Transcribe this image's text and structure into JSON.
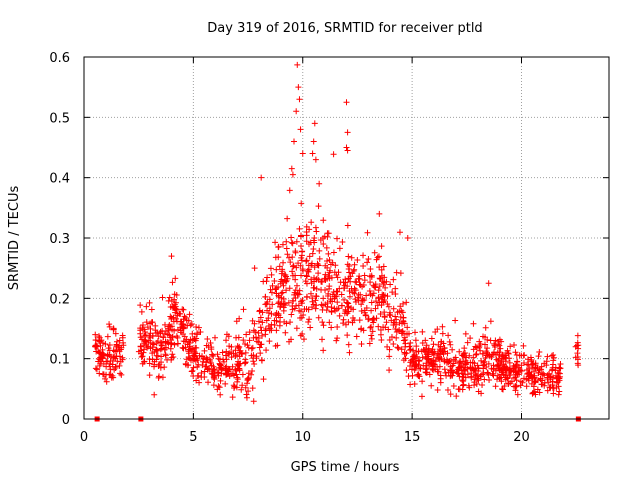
{
  "chart_data": {
    "type": "scatter",
    "title": "Day 319 of 2016, SRMTID for receiver ptld",
    "xlabel": "GPS time / hours",
    "ylabel": "SRMTID / TECUs",
    "xlim": [
      0,
      24
    ],
    "ylim": [
      0,
      0.6
    ],
    "xticks": [
      0,
      5,
      10,
      15,
      20
    ],
    "yticks": [
      0,
      0.1,
      0.2,
      0.3,
      0.4,
      0.5,
      0.6
    ],
    "xtick_labels": [
      "0",
      "5",
      "10",
      "15",
      "20"
    ],
    "ytick_labels": [
      "0",
      "0.1",
      "0.2",
      "0.3",
      "0.4",
      "0.5",
      "0.6"
    ],
    "grid": true,
    "marker": "+",
    "color": "#ff0000",
    "zero_markers_x": [
      0.6,
      2.6,
      22.6
    ],
    "trend": [
      {
        "x": 0.5,
        "y": 0.11
      },
      {
        "x": 1.0,
        "y": 0.1
      },
      {
        "x": 1.5,
        "y": 0.11
      },
      {
        "x": 2.6,
        "y": 0.13
      },
      {
        "x": 3.0,
        "y": 0.12
      },
      {
        "x": 3.5,
        "y": 0.11
      },
      {
        "x": 4.0,
        "y": 0.16
      },
      {
        "x": 4.5,
        "y": 0.14
      },
      {
        "x": 5.0,
        "y": 0.11
      },
      {
        "x": 5.5,
        "y": 0.1
      },
      {
        "x": 6.0,
        "y": 0.08
      },
      {
        "x": 6.5,
        "y": 0.09
      },
      {
        "x": 7.0,
        "y": 0.1
      },
      {
        "x": 7.5,
        "y": 0.09
      },
      {
        "x": 8.0,
        "y": 0.14
      },
      {
        "x": 8.5,
        "y": 0.18
      },
      {
        "x": 9.0,
        "y": 0.21
      },
      {
        "x": 9.5,
        "y": 0.24
      },
      {
        "x": 10.0,
        "y": 0.23
      },
      {
        "x": 10.5,
        "y": 0.24
      },
      {
        "x": 11.0,
        "y": 0.23
      },
      {
        "x": 11.5,
        "y": 0.22
      },
      {
        "x": 12.0,
        "y": 0.21
      },
      {
        "x": 12.5,
        "y": 0.2
      },
      {
        "x": 13.0,
        "y": 0.2
      },
      {
        "x": 13.5,
        "y": 0.2
      },
      {
        "x": 14.0,
        "y": 0.17
      },
      {
        "x": 14.5,
        "y": 0.16
      },
      {
        "x": 15.0,
        "y": 0.1
      },
      {
        "x": 15.5,
        "y": 0.09
      },
      {
        "x": 16.0,
        "y": 0.1
      },
      {
        "x": 16.5,
        "y": 0.1
      },
      {
        "x": 17.0,
        "y": 0.08
      },
      {
        "x": 17.5,
        "y": 0.09
      },
      {
        "x": 18.0,
        "y": 0.09
      },
      {
        "x": 18.5,
        "y": 0.1
      },
      {
        "x": 19.0,
        "y": 0.09
      },
      {
        "x": 19.5,
        "y": 0.08
      },
      {
        "x": 20.0,
        "y": 0.08
      },
      {
        "x": 20.5,
        "y": 0.07
      },
      {
        "x": 21.0,
        "y": 0.08
      },
      {
        "x": 21.5,
        "y": 0.07
      },
      {
        "x": 22.6,
        "y": 0.1
      }
    ],
    "spread": [
      {
        "x": 0.5,
        "y": 0.025
      },
      {
        "x": 4.0,
        "y": 0.04
      },
      {
        "x": 6.0,
        "y": 0.025
      },
      {
        "x": 8.5,
        "y": 0.055
      },
      {
        "x": 10.0,
        "y": 0.065
      },
      {
        "x": 12.0,
        "y": 0.06
      },
      {
        "x": 14.0,
        "y": 0.05
      },
      {
        "x": 15.5,
        "y": 0.025
      },
      {
        "x": 18.0,
        "y": 0.03
      },
      {
        "x": 22.6,
        "y": 0.02
      }
    ],
    "gaps": [
      [
        1.8,
        2.5
      ],
      [
        21.8,
        22.45
      ],
      [
        22.75,
        24
      ]
    ],
    "highlights": [
      {
        "x": 9.75,
        "y": 0.587
      },
      {
        "x": 9.8,
        "y": 0.55
      },
      {
        "x": 9.85,
        "y": 0.53
      },
      {
        "x": 9.7,
        "y": 0.51
      },
      {
        "x": 9.9,
        "y": 0.48
      },
      {
        "x": 9.6,
        "y": 0.46
      },
      {
        "x": 10.0,
        "y": 0.44
      },
      {
        "x": 10.55,
        "y": 0.49
      },
      {
        "x": 10.5,
        "y": 0.46
      },
      {
        "x": 10.45,
        "y": 0.44
      },
      {
        "x": 10.6,
        "y": 0.43
      },
      {
        "x": 12.0,
        "y": 0.525
      },
      {
        "x": 12.05,
        "y": 0.475
      },
      {
        "x": 12.0,
        "y": 0.45
      },
      {
        "x": 12.05,
        "y": 0.445
      },
      {
        "x": 8.1,
        "y": 0.4
      },
      {
        "x": 9.5,
        "y": 0.415
      },
      {
        "x": 9.55,
        "y": 0.405
      },
      {
        "x": 10.75,
        "y": 0.39
      },
      {
        "x": 13.5,
        "y": 0.34
      },
      {
        "x": 14.8,
        "y": 0.3
      },
      {
        "x": 18.5,
        "y": 0.225
      },
      {
        "x": 4.0,
        "y": 0.27
      },
      {
        "x": 7.8,
        "y": 0.25
      }
    ],
    "sample_count": 1800
  }
}
